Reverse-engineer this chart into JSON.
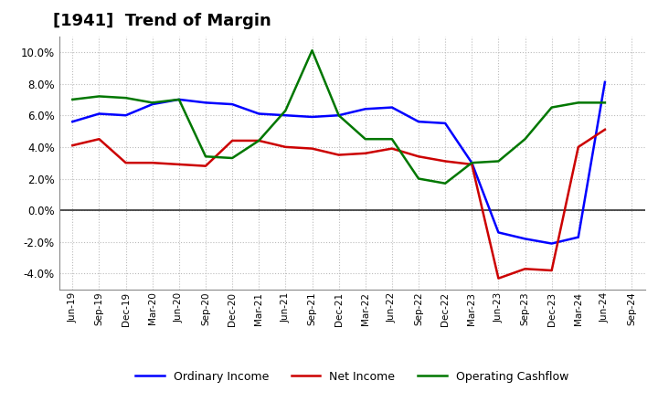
{
  "title": "[1941]  Trend of Margin",
  "x_labels": [
    "Jun-19",
    "Sep-19",
    "Dec-19",
    "Mar-20",
    "Jun-20",
    "Sep-20",
    "Dec-20",
    "Mar-21",
    "Jun-21",
    "Sep-21",
    "Dec-21",
    "Mar-22",
    "Jun-22",
    "Sep-22",
    "Dec-22",
    "Mar-23",
    "Jun-23",
    "Sep-23",
    "Dec-23",
    "Mar-24",
    "Jun-24",
    "Sep-24"
  ],
  "ordinary_income": [
    5.6,
    6.1,
    6.0,
    6.7,
    7.0,
    6.8,
    6.7,
    6.1,
    6.0,
    5.9,
    6.0,
    6.4,
    6.5,
    5.6,
    5.5,
    3.0,
    -1.4,
    -1.8,
    -2.1,
    -1.7,
    8.1,
    null
  ],
  "net_income": [
    4.1,
    4.5,
    3.0,
    3.0,
    2.9,
    2.8,
    4.4,
    4.4,
    4.0,
    3.9,
    3.5,
    3.6,
    3.9,
    3.4,
    3.1,
    2.9,
    -4.3,
    -3.7,
    -3.8,
    4.0,
    5.1,
    null
  ],
  "operating_cashflow": [
    7.0,
    7.2,
    7.1,
    6.8,
    7.0,
    3.4,
    3.3,
    4.4,
    6.3,
    10.1,
    6.0,
    4.5,
    4.5,
    2.0,
    1.7,
    3.0,
    3.1,
    4.5,
    6.5,
    6.8,
    6.8,
    null
  ],
  "ordinary_income_color": "#0000FF",
  "net_income_color": "#CC0000",
  "operating_cashflow_color": "#007700",
  "ylim": [
    -5.0,
    11.0
  ],
  "yticks": [
    -4.0,
    -2.0,
    0.0,
    2.0,
    4.0,
    6.0,
    8.0,
    10.0
  ],
  "background_color": "#FFFFFF",
  "plot_bg_color": "#FFFFFF",
  "grid_color": "#BBBBBB",
  "title_fontsize": 13,
  "legend_labels": [
    "Ordinary Income",
    "Net Income",
    "Operating Cashflow"
  ]
}
